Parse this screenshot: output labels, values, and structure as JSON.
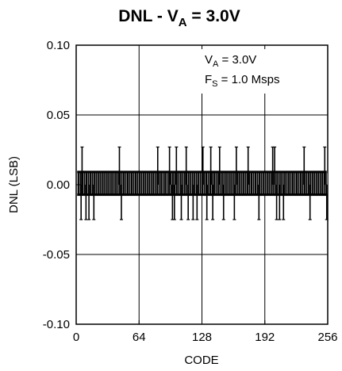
{
  "chart_data": {
    "type": "line",
    "title": {
      "prefix": "DNL - V",
      "subscript": "A",
      "suffix": " = 3.0V"
    },
    "xlabel": "CODE",
    "ylabel": "DNL (LSB)",
    "xlim": [
      0,
      256
    ],
    "ylim": [
      -0.1,
      0.1
    ],
    "x_ticks": [
      0,
      64,
      128,
      192,
      256
    ],
    "x_tick_labels": [
      "0",
      "64",
      "128",
      "192",
      "256"
    ],
    "y_ticks": [
      0.1,
      0.05,
      0.0,
      -0.05,
      -0.1
    ],
    "y_tick_labels": [
      "0.10",
      "0.05",
      "0.00",
      "-0.05",
      "-0.10"
    ],
    "grid": true,
    "annotations": [
      {
        "main": "V",
        "sub": "A",
        "rest": " = 3.0V"
      },
      {
        "main": "F",
        "sub": "S",
        "rest": " = 1.0 Msps"
      }
    ],
    "series_color": "#000000",
    "dnl_band": [
      -0.008,
      0.01
    ],
    "x": [
      0,
      1,
      2,
      3,
      4,
      5,
      6,
      7,
      8,
      9,
      10,
      11,
      12,
      13,
      14,
      15,
      16,
      17,
      18,
      19,
      20,
      21,
      22,
      23,
      24,
      25,
      26,
      27,
      28,
      29,
      30,
      31,
      32,
      33,
      34,
      35,
      36,
      37,
      38,
      39,
      40,
      41,
      42,
      43,
      44,
      45,
      46,
      47,
      48,
      49,
      50,
      51,
      52,
      53,
      54,
      55,
      56,
      57,
      58,
      59,
      60,
      61,
      62,
      63,
      64,
      65,
      66,
      67,
      68,
      69,
      70,
      71,
      72,
      73,
      74,
      75,
      76,
      77,
      78,
      79,
      80,
      81,
      82,
      83,
      84,
      85,
      86,
      87,
      88,
      89,
      90,
      91,
      92,
      93,
      94,
      95,
      96,
      97,
      98,
      99,
      100,
      101,
      102,
      103,
      104,
      105,
      106,
      107,
      108,
      109,
      110,
      111,
      112,
      113,
      114,
      115,
      116,
      117,
      118,
      119,
      120,
      121,
      122,
      123,
      124,
      125,
      126,
      127,
      128,
      129,
      130,
      131,
      132,
      133,
      134,
      135,
      136,
      137,
      138,
      139,
      140,
      141,
      142,
      143,
      144,
      145,
      146,
      147,
      148,
      149,
      150,
      151,
      152,
      153,
      154,
      155,
      156,
      157,
      158,
      159,
      160,
      161,
      162,
      163,
      164,
      165,
      166,
      167,
      168,
      169,
      170,
      171,
      172,
      173,
      174,
      175,
      176,
      177,
      178,
      179,
      180,
      181,
      182,
      183,
      184,
      185,
      186,
      187,
      188,
      189,
      190,
      191,
      192,
      193,
      194,
      195,
      196,
      197,
      198,
      199,
      200,
      201,
      202,
      203,
      204,
      205,
      206,
      207,
      208,
      209,
      210,
      211,
      212,
      213,
      214,
      215,
      216,
      217,
      218,
      219,
      220,
      221,
      222,
      223,
      224,
      225,
      226,
      227,
      228,
      229,
      230,
      231,
      232,
      233,
      234,
      235,
      236,
      237,
      238,
      239,
      240,
      241,
      242,
      243,
      244,
      245,
      246,
      247,
      248,
      249,
      250,
      251,
      252,
      253,
      254,
      255
    ],
    "spikes": [
      {
        "x": 6,
        "y": 0.027
      },
      {
        "x": 5,
        "y": -0.025
      },
      {
        "x": 10,
        "y": -0.025
      },
      {
        "x": 13,
        "y": -0.025
      },
      {
        "x": 18,
        "y": -0.025
      },
      {
        "x": 44,
        "y": 0.027
      },
      {
        "x": 46,
        "y": -0.025
      },
      {
        "x": 83,
        "y": 0.027
      },
      {
        "x": 95,
        "y": 0.027
      },
      {
        "x": 98,
        "y": -0.025
      },
      {
        "x": 100,
        "y": -0.025
      },
      {
        "x": 102,
        "y": 0.027
      },
      {
        "x": 107,
        "y": -0.025
      },
      {
        "x": 112,
        "y": 0.027
      },
      {
        "x": 114,
        "y": -0.025
      },
      {
        "x": 119,
        "y": -0.025
      },
      {
        "x": 123,
        "y": -0.025
      },
      {
        "x": 129,
        "y": 0.027
      },
      {
        "x": 133,
        "y": -0.025
      },
      {
        "x": 137,
        "y": 0.027
      },
      {
        "x": 139,
        "y": -0.025
      },
      {
        "x": 146,
        "y": 0.027
      },
      {
        "x": 150,
        "y": -0.025
      },
      {
        "x": 161,
        "y": -0.025
      },
      {
        "x": 163,
        "y": 0.027
      },
      {
        "x": 175,
        "y": 0.027
      },
      {
        "x": 186,
        "y": -0.025
      },
      {
        "x": 200,
        "y": 0.027
      },
      {
        "x": 202,
        "y": 0.027
      },
      {
        "x": 204,
        "y": -0.025
      },
      {
        "x": 207,
        "y": -0.025
      },
      {
        "x": 211,
        "y": -0.025
      },
      {
        "x": 232,
        "y": 0.027
      },
      {
        "x": 238,
        "y": -0.025
      },
      {
        "x": 253,
        "y": 0.027
      },
      {
        "x": 255,
        "y": -0.025
      }
    ]
  }
}
